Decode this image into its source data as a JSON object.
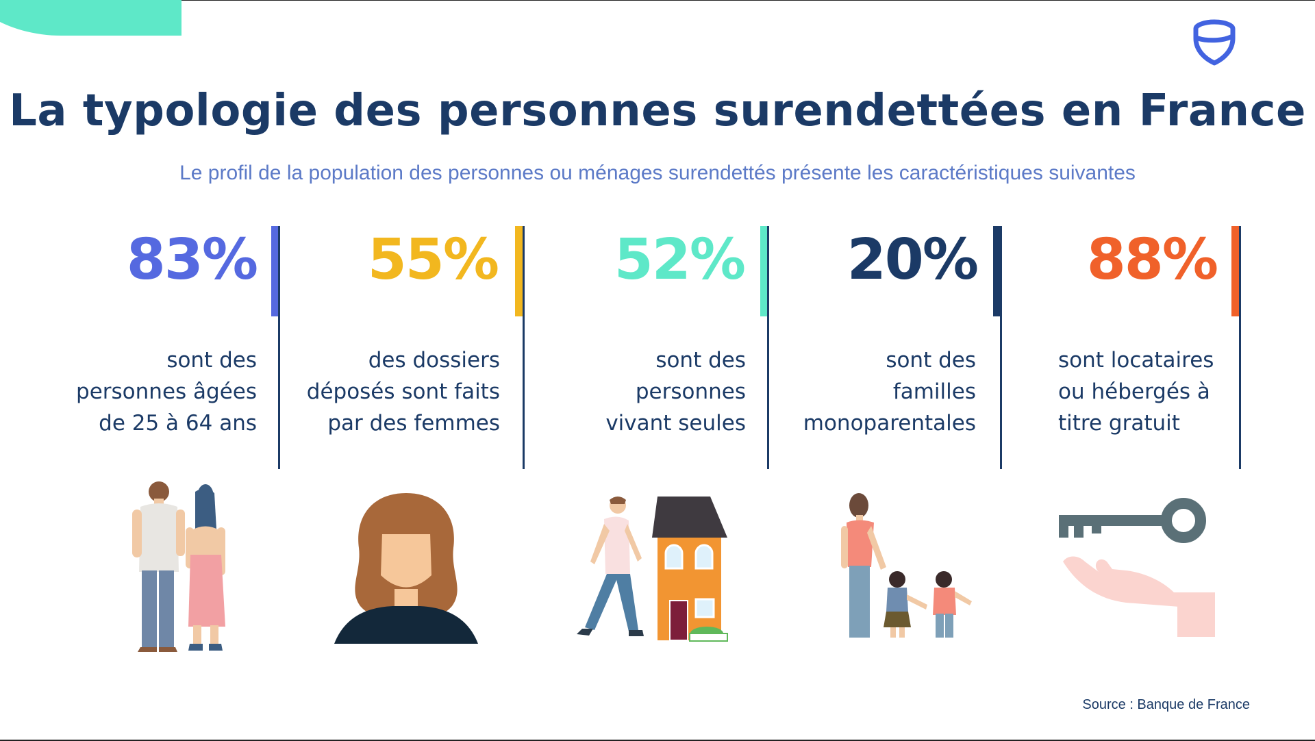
{
  "title": "La typologie des personnes surendettées en France",
  "subtitle": "Le profil de la population des personnes ou ménages surendettés présente les caractéristiques suivantes",
  "colors": {
    "navy": "#1b3a66",
    "blue": "#5569e0",
    "yellow": "#f2b71f",
    "mint": "#5ee8c8",
    "orange": "#f0612a"
  },
  "stats": [
    {
      "value": "83%",
      "description": "sont des\npersonnes âgées\nde 25 à 64 ans",
      "color": "#5569e0",
      "illustration": "couple-illustration"
    },
    {
      "value": "55%",
      "description": "des dossiers\ndéposés sont faits\npar des femmes",
      "color": "#f2b71f",
      "illustration": "woman-illustration"
    },
    {
      "value": "52%",
      "description": "sont des\npersonnes\nvivant seules",
      "color": "#5ee8c8",
      "illustration": "man-and-house-illustration"
    },
    {
      "value": "20%",
      "description": "sont des\nfamilles\nmonoparentales",
      "color": "#1b3a66",
      "illustration": "single-parent-family-illustration"
    },
    {
      "value": "88%",
      "description": "sont locataires\nou  hébergés  à\ntitre gratuit",
      "color": "#f0612a",
      "illustration": "key-in-hand-illustration"
    }
  ],
  "source": "Source : Banque de France",
  "logo": "shield-logo-icon"
}
